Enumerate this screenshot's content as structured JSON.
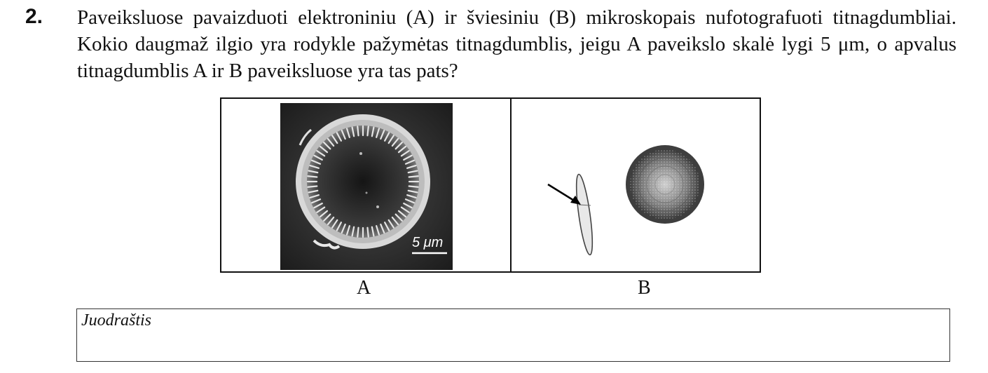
{
  "question": {
    "number": "2.",
    "text": "Paveiksluose pavaizduoti elektroniniu (A) ir šviesiniu (B) mikroskopais nufotografuoti titnagdumbliai. Kokio daugmaž ilgio yra rodykle pažymėtas titnagdumblis, jeigu A paveikslo skalė lygi 5 μm, o apvalus titnagdumblis A ir B paveiksluose yra tas pats?"
  },
  "figure": {
    "panel_a": {
      "scale_bar_label": "5 μm",
      "image_icon": "sem-diatom-circular-image",
      "caption": "A"
    },
    "panel_b": {
      "image_icon": "light-microscope-diatoms-image",
      "arrow_icon": "arrow-pointer-icon",
      "caption": "B"
    }
  },
  "draft_box": {
    "label": "Juodraštis"
  },
  "colors": {
    "text": "#111111",
    "sem_background": "#2a2a2a",
    "diatom_rim": "#cfcfcf"
  }
}
